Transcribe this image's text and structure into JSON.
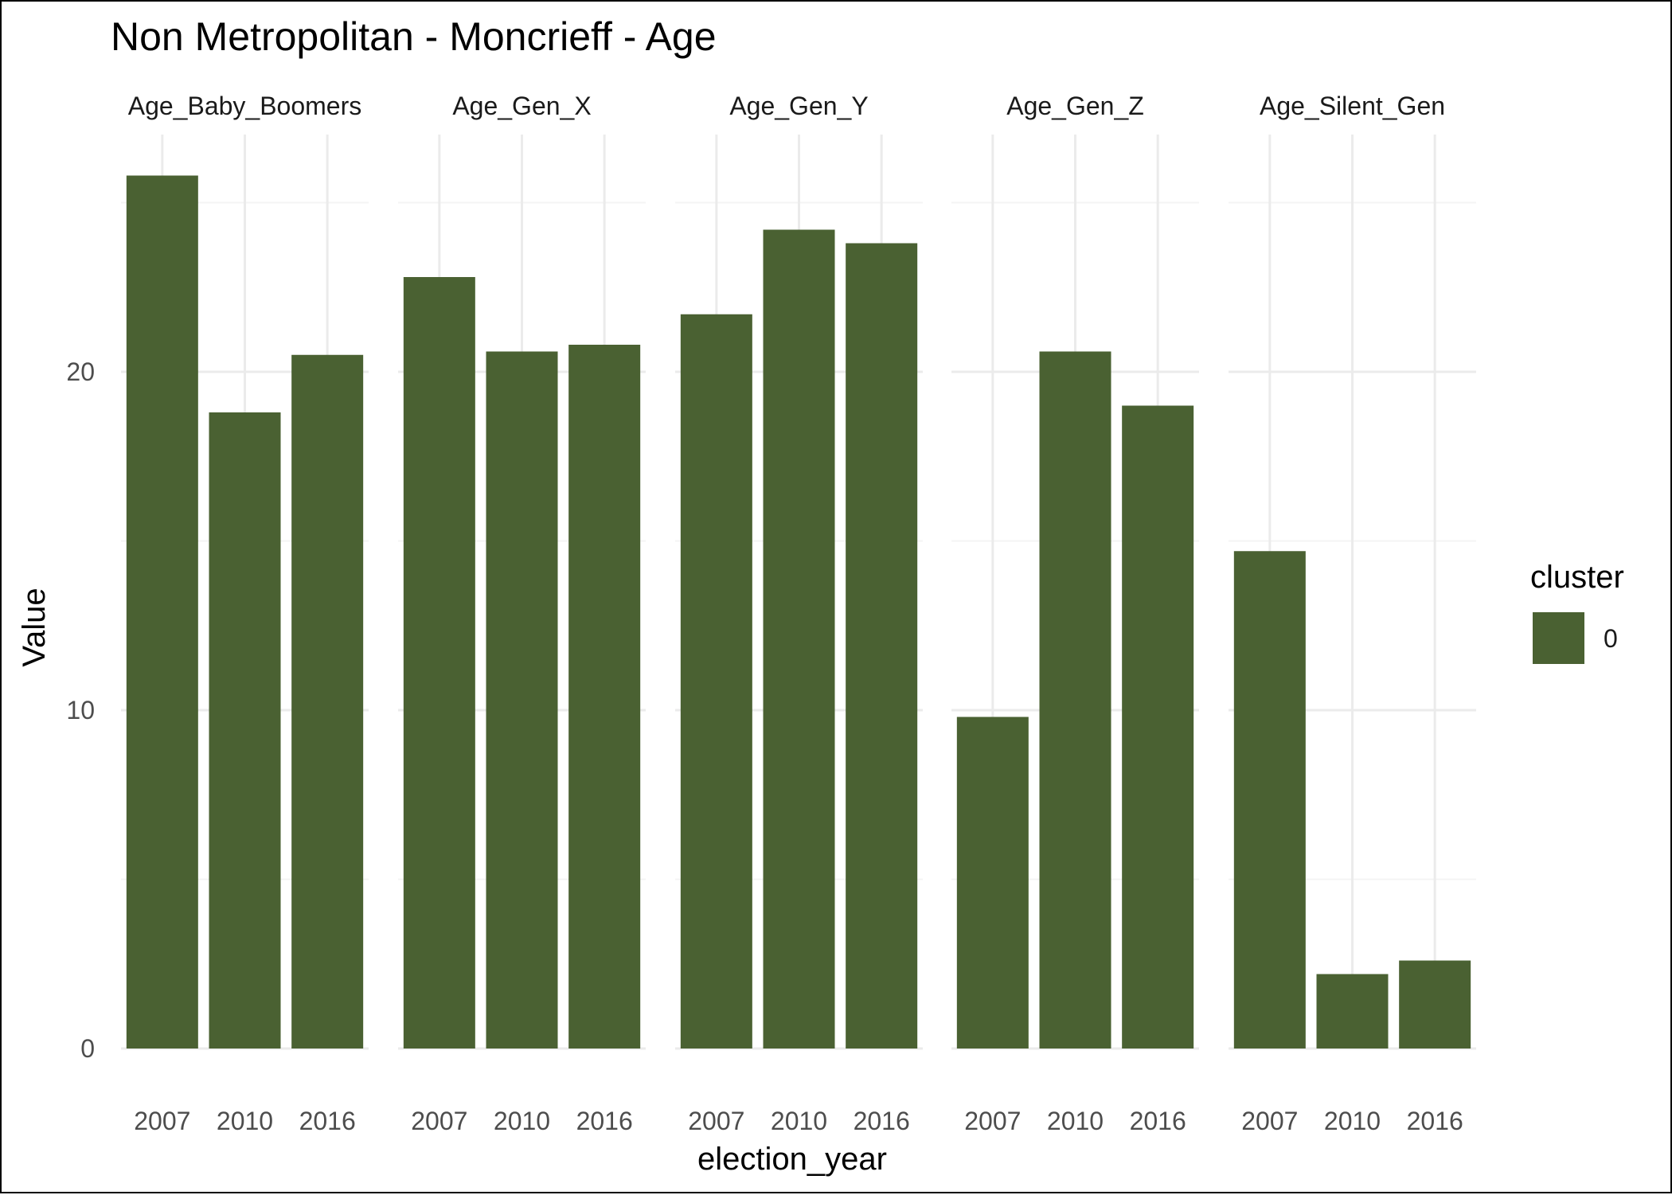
{
  "chart_data": {
    "type": "bar",
    "title": "Non Metropolitan - Moncrieff - Age",
    "xlabel": "election_year",
    "ylabel": "Value",
    "ylim": [
      0,
      26.5
    ],
    "yticks": [
      0,
      10,
      20
    ],
    "grid": true,
    "categories": [
      "2007",
      "2010",
      "2016"
    ],
    "facets": [
      {
        "name": "Age_Baby_Boomers",
        "values": [
          25.8,
          18.8,
          20.5
        ]
      },
      {
        "name": "Age_Gen_X",
        "values": [
          22.8,
          20.6,
          20.8
        ]
      },
      {
        "name": "Age_Gen_Y",
        "values": [
          21.7,
          24.2,
          23.8
        ]
      },
      {
        "name": "Age_Gen_Z",
        "values": [
          9.8,
          20.6,
          19.0
        ]
      },
      {
        "name": "Age_Silent_Gen",
        "values": [
          14.7,
          2.2,
          2.6
        ]
      }
    ],
    "legend": {
      "title": "cluster",
      "entries": [
        "0"
      ],
      "placement": "right"
    },
    "colors": {
      "bar": "#4a6132",
      "grid_major": "#ebebeb",
      "grid_minor": "#f4f4f4"
    }
  }
}
